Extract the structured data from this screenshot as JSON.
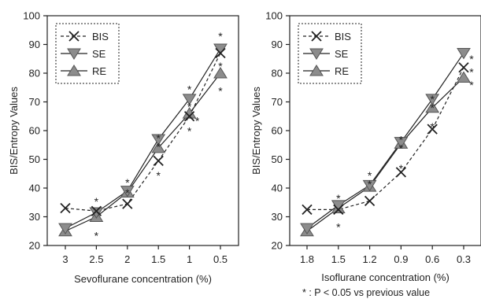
{
  "chart_data": [
    {
      "type": "line",
      "xlabel": "Sevoflurane concentration (%)",
      "ylabel": "BIS/Entropy Values",
      "categories": [
        "3",
        "2.5",
        "2",
        "1.5",
        "1",
        "0.5"
      ],
      "ylim": [
        20,
        100
      ],
      "yticks": [
        20,
        30,
        40,
        50,
        60,
        70,
        80,
        90,
        100
      ],
      "legend_position": "top-left",
      "series": [
        {
          "name": "BIS",
          "marker": "x",
          "line": "dashed",
          "values": [
            33,
            32,
            34.5,
            49.5,
            65,
            87
          ]
        },
        {
          "name": "SE",
          "marker": "triangle-down",
          "line": "solid",
          "values": [
            26,
            31.5,
            39,
            57,
            71,
            88.5
          ]
        },
        {
          "name": "RE",
          "marker": "triangle-up",
          "line": "solid",
          "values": [
            25,
            30,
            38.5,
            54,
            66,
            80
          ]
        }
      ],
      "significance_marks": [
        {
          "x": "2.5",
          "y": 36.5
        },
        {
          "x": "2.5",
          "y": 24.5
        },
        {
          "x": "2",
          "y": 43
        },
        {
          "x": "2",
          "y": 39.5
        },
        {
          "x": "1.5",
          "y": 58.5
        },
        {
          "x": "1.5",
          "y": 55.5
        },
        {
          "x": "1.5",
          "y": 45.5
        },
        {
          "x": "1",
          "y": 75.5
        },
        {
          "x": "1",
          "y": 69.5
        },
        {
          "x": "1",
          "y": 61
        },
        {
          "x": "1",
          "y": 64.5,
          "offset": "right"
        },
        {
          "x": "0.5",
          "y": 94
        },
        {
          "x": "0.5",
          "y": 83.5
        },
        {
          "x": "0.5",
          "y": 75
        }
      ]
    },
    {
      "type": "line",
      "xlabel": "Isoflurane concentration (%)",
      "ylabel": "BIS/Entropy Values",
      "categories": [
        "1.8",
        "1.5",
        "1.2",
        "0.9",
        "0.6",
        "0.3"
      ],
      "ylim": [
        20,
        100
      ],
      "yticks": [
        20,
        30,
        40,
        50,
        60,
        70,
        80,
        90,
        100
      ],
      "legend_position": "top-left",
      "series": [
        {
          "name": "BIS",
          "marker": "x",
          "line": "dashed",
          "values": [
            32.5,
            32.5,
            35.5,
            45.5,
            60.5,
            82
          ]
        },
        {
          "name": "SE",
          "marker": "triangle-down",
          "line": "solid",
          "values": [
            26,
            34,
            41,
            56,
            71,
            87
          ]
        },
        {
          "name": "RE",
          "marker": "triangle-up",
          "line": "solid",
          "values": [
            25,
            33,
            40.5,
            55.5,
            68,
            78.5
          ]
        }
      ],
      "significance_marks": [
        {
          "x": "1.5",
          "y": 37.5
        },
        {
          "x": "1.5",
          "y": 27.5
        },
        {
          "x": "1.2",
          "y": 45.5
        },
        {
          "x": "1.2",
          "y": 42.5
        },
        {
          "x": "0.9",
          "y": 58
        },
        {
          "x": "0.9",
          "y": 55
        },
        {
          "x": "0.9",
          "y": 48
        },
        {
          "x": "0.6",
          "y": 72
        },
        {
          "x": "0.6",
          "y": 69
        },
        {
          "x": "0.6",
          "y": 62.5
        },
        {
          "x": "0.3",
          "y": 86,
          "offset": "right"
        },
        {
          "x": "0.3",
          "y": 81.5,
          "offset": "right"
        },
        {
          "x": "0.3",
          "y": 77,
          "offset": "right"
        }
      ]
    }
  ],
  "footnote": "* : P < 0.05 vs previous value",
  "colors": {
    "axis": "#222222",
    "line": "#222222",
    "triangle_fill": "#8c8c8c",
    "triangle_stroke": "#555555"
  }
}
